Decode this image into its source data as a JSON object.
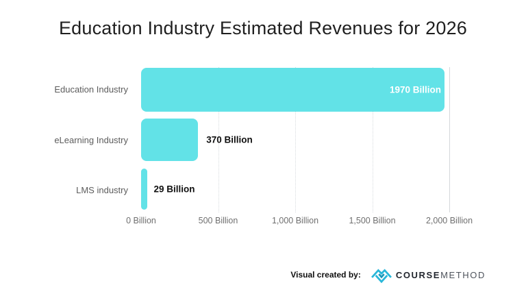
{
  "title": "Education Industry Estimated Revenues for 2026",
  "chart_data": {
    "type": "bar",
    "orientation": "horizontal",
    "title": "Education Industry Estimated Revenues for 2026",
    "categories": [
      "Education Industry",
      "eLearning Industry",
      "LMS industry"
    ],
    "values": [
      1970,
      370,
      29
    ],
    "value_labels": [
      "1970 Billion",
      "370 Billion",
      "29 Billion"
    ],
    "unit": "Billion",
    "xlim": [
      0,
      2000
    ],
    "x_ticks": [
      "0 Billion",
      "500 Billion",
      "1,000 Billion",
      "1,500 Billion",
      "2,000 Billion"
    ],
    "grid": "vertical dotted gridlines at 500/1000/1500, solid at 2000",
    "legend": "none",
    "bar_color": "#62e2e7"
  },
  "footer": {
    "credit_label": "Visual created by:",
    "brand_primary": "COURSE",
    "brand_secondary": "METHOD",
    "logo_icon": "zigzag-diamond-icon",
    "logo_color": "#29b7d9"
  },
  "colors": {
    "background": "#ffffff",
    "bar": "#62e2e7",
    "title_text": "#1f1f1f",
    "category_text": "#5c5c5c",
    "tick_text": "#6f6f6f",
    "value_inside": "#ffffff",
    "value_outside": "#101010",
    "gridline": "#d7dbde"
  }
}
